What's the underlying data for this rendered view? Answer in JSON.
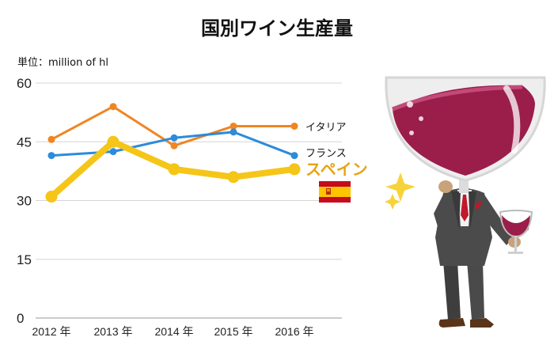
{
  "chart_data": {
    "type": "line",
    "title": "国別ワイン生産量",
    "unit_label": "単位：million of hl",
    "categories": [
      "2012 年",
      "2013 年",
      "2014 年",
      "2015 年",
      "2016 年"
    ],
    "ylim": [
      0,
      60
    ],
    "yticks": [
      0,
      15,
      30,
      45,
      60
    ],
    "grid": true,
    "series": [
      {
        "name": "イタリア",
        "color": "#F08522",
        "values": [
          45.6,
          54.0,
          44.0,
          49.0,
          49.0
        ],
        "highlight": false
      },
      {
        "name": "フランス",
        "color": "#2C8BDB",
        "values": [
          41.5,
          42.5,
          46.0,
          47.5,
          41.5
        ],
        "highlight": false
      },
      {
        "name": "スペイン",
        "color": "#F5C518",
        "values": [
          31.0,
          45.0,
          38.0,
          36.0,
          38.0
        ],
        "highlight": true
      }
    ]
  },
  "illustration": {
    "flag_icon": "spain-flag-icon",
    "figure_icon": "wine-glass-head-man-icon"
  }
}
